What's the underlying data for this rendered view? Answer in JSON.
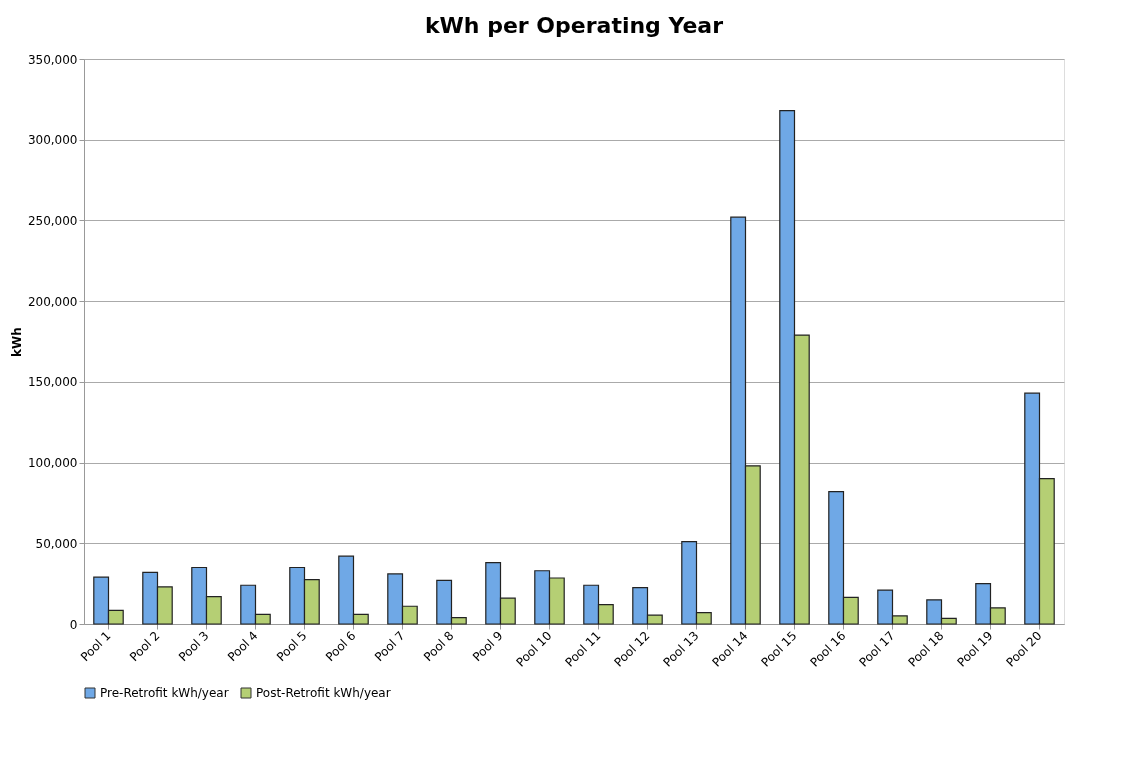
{
  "chart_data": {
    "type": "bar",
    "title": "kWh per Operating Year",
    "ylabel": "kWh",
    "categories": [
      "Pool 1",
      "Pool 2",
      "Pool 3",
      "Pool 4",
      "Pool 5",
      "Pool 6",
      "Pool 7",
      "Pool 8",
      "Pool 9",
      "Pool 10",
      "Pool 11",
      "Pool 12",
      "Pool 13",
      "Pool 14",
      "Pool 15",
      "Pool 16",
      "Pool 17",
      "Pool 18",
      "Pool 19",
      "Pool 20"
    ],
    "series": [
      {
        "name": "Pre-Retrofit kWh/year",
        "color": "#6fa8e6",
        "values": [
          29000,
          32000,
          35000,
          24000,
          35000,
          42000,
          31000,
          27000,
          38000,
          33000,
          24000,
          22500,
          51000,
          252000,
          318000,
          82000,
          21000,
          15000,
          25000,
          143000
        ]
      },
      {
        "name": "Post-Retrofit kWh/year",
        "color": "#b5cf74",
        "values": [
          8500,
          23000,
          17000,
          6000,
          27500,
          6000,
          11000,
          4000,
          16000,
          28500,
          12000,
          5500,
          7000,
          98000,
          179000,
          16500,
          5000,
          3500,
          10000,
          90000
        ]
      }
    ],
    "ylim": [
      0,
      350000
    ],
    "yticks": [
      0,
      {
        "value": 50000,
        "label": "50,000"
      },
      {
        "value": 100000,
        "label": "100,000"
      },
      {
        "value": 150000,
        "label": "150,000"
      },
      {
        "value": 200000,
        "label": "200,000"
      },
      {
        "value": 250000,
        "label": "250,000"
      },
      {
        "value": 300000,
        "label": "300,000"
      },
      {
        "value": 350000,
        "label": "350,000"
      }
    ],
    "grid": "y",
    "legend": "bottom"
  }
}
